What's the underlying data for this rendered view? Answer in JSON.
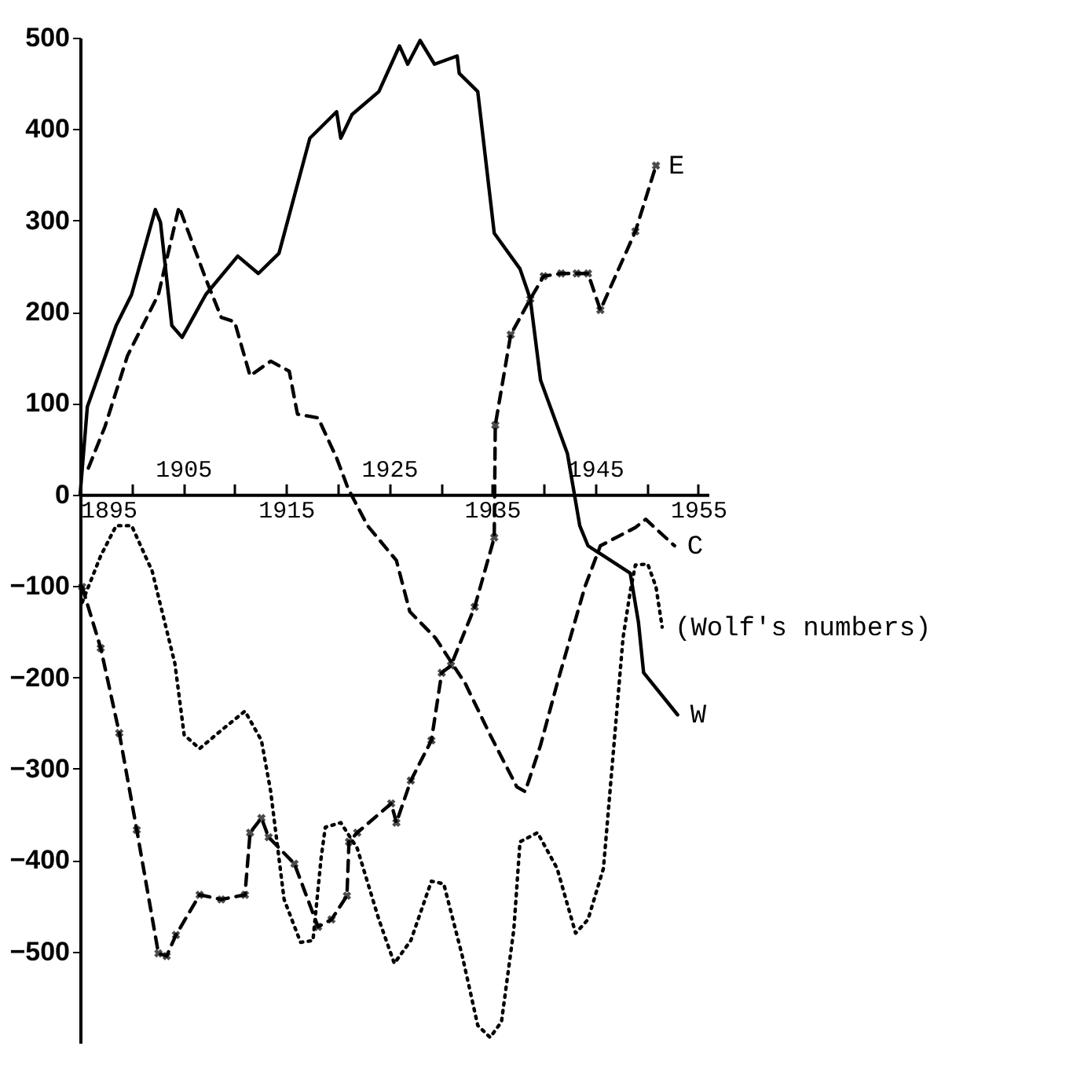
{
  "chart_data": {
    "type": "line",
    "xlim": [
      1895,
      1956
    ],
    "ylim": [
      -600,
      500
    ],
    "xticks": [
      1895,
      {
        "value": 1900,
        "label": null
      },
      {
        "value": 1905,
        "label": null
      },
      {
        "value": 1910,
        "label": null
      },
      1915,
      {
        "value": 1920,
        "label": null
      },
      {
        "value": 1925,
        "label": null
      },
      {
        "value": 1930,
        "label": null
      },
      1935,
      {
        "value": 1940,
        "label": null
      },
      {
        "value": 1945,
        "label": null
      },
      {
        "value": 1950,
        "label": null
      },
      1955
    ],
    "x2lim": [
      1895,
      1956
    ],
    "x2ticks": [
      1905,
      1925,
      1945
    ],
    "yticks": [
      -500,
      -400,
      -300,
      -200,
      -100,
      0,
      100,
      200,
      300,
      400,
      500
    ],
    "grid": false,
    "series": [
      {
        "name": "W",
        "color": "#000000",
        "line_style": "solid",
        "marker": "none",
        "x": [
          1895,
          1895.7,
          1898.5,
          1900,
          1902.3,
          1902.8,
          1903.9,
          1904.9,
          1907.2,
          1910.3,
          1912.3,
          1914.3,
          1917.3,
          1919.9,
          1920.3,
          1921.4,
          1924,
          1926,
          1926.8,
          1928,
          1929.4,
          1931.6,
          1931.8,
          1933.6,
          1935.2,
          1937.7,
          1938.7,
          1939.7,
          1942.3,
          1943.5,
          1944.3,
          1948.4,
          1949.2,
          1949.7,
          1953
        ],
        "values": [
          0,
          96,
          185,
          219,
          312,
          298,
          185,
          172,
          219,
          261,
          242,
          264,
          390,
          419,
          390,
          416,
          441,
          491,
          471,
          497,
          471,
          480,
          461,
          441,
          286,
          247,
          214,
          125,
          45,
          -34,
          -56,
          -86,
          -140,
          -195,
          -241
        ]
      },
      {
        "name": "E",
        "color": "#000000",
        "line_style": "dashed",
        "marker": "cross",
        "x": [
          1895.2,
          1897,
          1898.8,
          1900.5,
          1902.6,
          1903.4,
          1904.3,
          1906.6,
          1908.7,
          1911,
          1911.5,
          1912.6,
          1913.3,
          1915.8,
          1918.1,
          1919.4,
          1920.9,
          1921.1,
          1921.9,
          1925.2,
          1925.7,
          1927.1,
          1929.1,
          1930.1,
          1931,
          1933.3,
          1935.2,
          1935.3,
          1936.8,
          1938.7,
          1940,
          1941.7,
          1943.2,
          1944.3,
          1945.5,
          1948.9,
          1950.9
        ],
        "values": [
          -101,
          -168,
          -261,
          -367,
          -502,
          -505,
          -482,
          -438,
          -443,
          -438,
          -370,
          -354,
          -375,
          -404,
          -473,
          -465,
          -439,
          -380,
          -370,
          -338,
          -359,
          -313,
          -269,
          -195,
          -187,
          -123,
          -47,
          76,
          175,
          214,
          239,
          242,
          242,
          242,
          202,
          288,
          360
        ]
      },
      {
        "name": "C",
        "color": "#000000",
        "line_style": "dashed",
        "marker": "none",
        "x": [
          1895.8,
          1897.4,
          1899.6,
          1902.6,
          1904.6,
          1907.2,
          1908.7,
          1910,
          1911.5,
          1913.5,
          1915.3,
          1916.1,
          1918.1,
          1919.9,
          1921,
          1922.9,
          1925.7,
          1927,
          1929.5,
          1932.4,
          1934.8,
          1937.4,
          1938.2,
          1939.7,
          1941.3,
          1944,
          1945.5,
          1948.9,
          1949.9,
          1952.7
        ],
        "values": [
          29,
          74,
          152,
          219,
          315,
          236,
          194,
          189,
          130,
          146,
          135,
          88,
          84,
          40,
          7,
          -34,
          -72,
          -128,
          -157,
          -207,
          -263,
          -320,
          -325,
          -274,
          -207,
          -101,
          -56,
          -36,
          -27,
          -56
        ]
      },
      {
        "name": "(Wolf's numbers)",
        "color": "#000000",
        "line_style": "dotted",
        "marker": "none",
        "x": [
          1895.2,
          1897,
          1898.5,
          1900,
          1902,
          1904.2,
          1905.1,
          1906.6,
          1908.7,
          1911,
          1912.6,
          1913.5,
          1914.8,
          1916.4,
          1917.6,
          1918.4,
          1918.8,
          1920.3,
          1921.9,
          1924,
          1925.5,
          1927.1,
          1929.1,
          1930.3,
          1932.1,
          1933.6,
          1934.8,
          1935.9,
          1937.1,
          1937.7,
          1939.4,
          1941.3,
          1943.1,
          1944.3,
          1945.8,
          1947.7,
          1948.4,
          1948.9,
          1950.1,
          1950.9,
          1951.5
        ],
        "values": [
          -118,
          -67,
          -34,
          -34,
          -84,
          -185,
          -263,
          -278,
          -258,
          -237,
          -269,
          -325,
          -443,
          -490,
          -488,
          -397,
          -364,
          -359,
          -387,
          -465,
          -513,
          -488,
          -423,
          -426,
          -505,
          -581,
          -594,
          -577,
          -476,
          -380,
          -370,
          -409,
          -480,
          -465,
          -409,
          -157,
          -106,
          -77,
          -76,
          -101,
          -145
        ]
      }
    ]
  }
}
